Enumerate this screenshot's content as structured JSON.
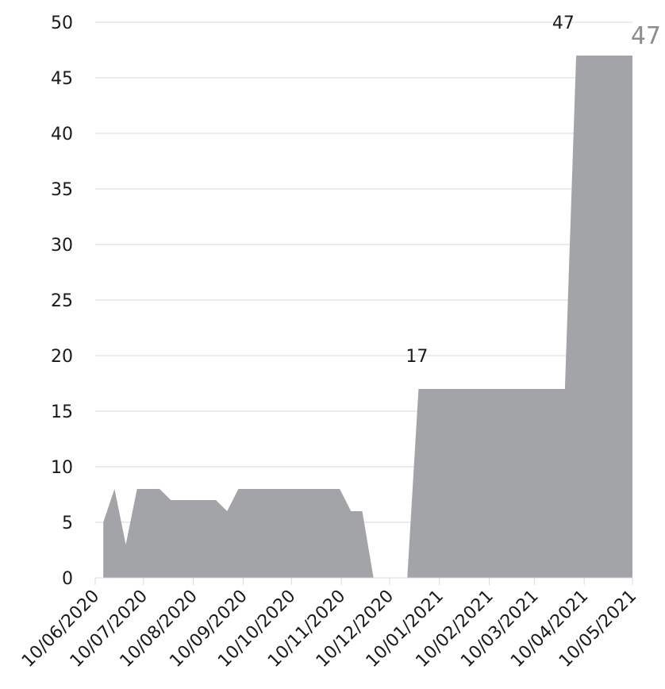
{
  "chart_data": {
    "type": "area",
    "title": "",
    "xlabel": "",
    "ylabel": "",
    "ylim": [
      0,
      50
    ],
    "y_ticks": [
      0,
      5,
      10,
      15,
      20,
      25,
      30,
      35,
      40,
      45,
      50
    ],
    "x_range": [
      "2020-06-10",
      "2021-05-10"
    ],
    "x_tick_labels": [
      {
        "date": "2020-06-10",
        "label": "10/06/2020"
      },
      {
        "date": "2020-07-10",
        "label": "10/07/2020"
      },
      {
        "date": "2020-08-10",
        "label": "10/08/2020"
      },
      {
        "date": "2020-09-10",
        "label": "10/09/2020"
      },
      {
        "date": "2020-10-10",
        "label": "10/10/2020"
      },
      {
        "date": "2020-11-10",
        "label": "10/11/2020"
      },
      {
        "date": "2020-12-10",
        "label": "10/12/2020"
      },
      {
        "date": "2021-01-10",
        "label": "10/01/2021"
      },
      {
        "date": "2021-02-10",
        "label": "10/02/2021"
      },
      {
        "date": "2021-03-10",
        "label": "10/03/2021"
      },
      {
        "date": "2021-04-10",
        "label": "10/04/2021"
      },
      {
        "date": "2021-05-10",
        "label": "10/05/2021"
      }
    ],
    "grid": true,
    "legend": "none",
    "series": [
      {
        "color": "#a2a4a7",
        "points": [
          {
            "x": "2020-06-15",
            "y": 5
          },
          {
            "x": "2020-06-22",
            "y": 8
          },
          {
            "x": "2020-06-29",
            "y": 3
          },
          {
            "x": "2020-07-06",
            "y": 8
          },
          {
            "x": "2020-07-13",
            "y": 8
          },
          {
            "x": "2020-07-20",
            "y": 8
          },
          {
            "x": "2020-07-27",
            "y": 7
          },
          {
            "x": "2020-08-03",
            "y": 7
          },
          {
            "x": "2020-08-10",
            "y": 7
          },
          {
            "x": "2020-08-17",
            "y": 7
          },
          {
            "x": "2020-08-24",
            "y": 7
          },
          {
            "x": "2020-08-31",
            "y": 6
          },
          {
            "x": "2020-09-07",
            "y": 8
          },
          {
            "x": "2020-09-14",
            "y": 8
          },
          {
            "x": "2020-09-21",
            "y": 8
          },
          {
            "x": "2020-09-28",
            "y": 8
          },
          {
            "x": "2020-10-05",
            "y": 8
          },
          {
            "x": "2020-10-12",
            "y": 8
          },
          {
            "x": "2020-10-19",
            "y": 8
          },
          {
            "x": "2020-10-26",
            "y": 8
          },
          {
            "x": "2020-11-02",
            "y": 8
          },
          {
            "x": "2020-11-09",
            "y": 8
          },
          {
            "x": "2020-11-16",
            "y": 6
          },
          {
            "x": "2020-11-23",
            "y": 6
          },
          {
            "x": "2020-11-30",
            "y": 0
          },
          {
            "x": "2020-12-21",
            "y": 0
          },
          {
            "x": "2020-12-28",
            "y": 17
          },
          {
            "x": "2021-01-04",
            "y": 17
          },
          {
            "x": "2021-03-29",
            "y": 17
          },
          {
            "x": "2021-04-05",
            "y": 47
          },
          {
            "x": "2021-05-10",
            "y": 47
          }
        ]
      }
    ],
    "data_labels": [
      {
        "text": "17",
        "x": "2020-12-28",
        "y": 17
      },
      {
        "text": "47",
        "x": "2021-03-29",
        "y": 47
      }
    ],
    "end_label": {
      "text": "47",
      "color": "#8c8c8c"
    }
  }
}
